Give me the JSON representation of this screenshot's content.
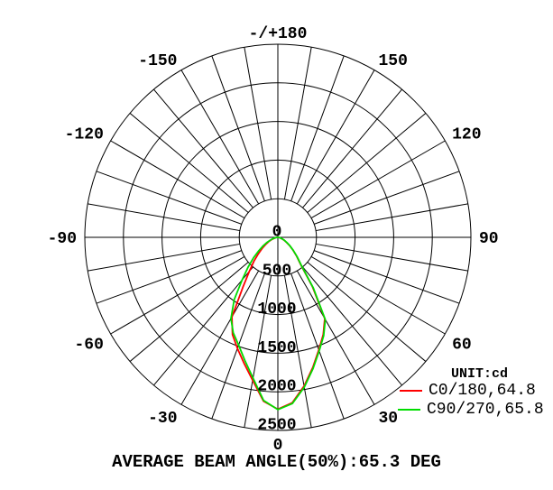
{
  "page": {
    "background": "#ffffff",
    "grid_color": "#000000",
    "text_color": "#000000"
  },
  "legend": {
    "unit_label": "UNIT:cd",
    "entries": [
      {
        "label": "C0/180,64.8",
        "color": "#ff0000"
      },
      {
        "label": "C90/270,65.8",
        "color": "#00dd00"
      }
    ]
  },
  "caption": "AVERAGE BEAM ANGLE(50%):65.3 DEG",
  "chart_data": {
    "type": "line",
    "subtype": "polar-intensity-distribution",
    "unit": "cd",
    "rmax": 2500,
    "radial_ticks": [
      0,
      500,
      1000,
      1500,
      2000,
      2500
    ],
    "grid": {
      "rings": 5,
      "spoke_step_deg": 10,
      "inner_spoke_radius_ticks": 1,
      "color": "#000000"
    },
    "angle_labels": [
      {
        "angle": 0,
        "text": "0"
      },
      {
        "angle": 30,
        "text": "30"
      },
      {
        "angle": -30,
        "text": "-30"
      },
      {
        "angle": 60,
        "text": "60"
      },
      {
        "angle": -60,
        "text": "-60"
      },
      {
        "angle": 90,
        "text": "90"
      },
      {
        "angle": -90,
        "text": "-90"
      },
      {
        "angle": 120,
        "text": "120"
      },
      {
        "angle": -120,
        "text": "-120"
      },
      {
        "angle": 150,
        "text": "150"
      },
      {
        "angle": -150,
        "text": "-150"
      },
      {
        "angle": 180,
        "text": "-/+180"
      }
    ],
    "angles_deg": [
      -90,
      -85,
      -80,
      -75,
      -70,
      -65,
      -60,
      -55,
      -50,
      -45,
      -40,
      -35,
      -30,
      -25,
      -20,
      -15,
      -10,
      -5,
      0,
      5,
      10,
      15,
      20,
      25,
      30,
      35,
      40,
      45,
      50,
      55,
      60,
      65,
      70,
      75,
      80,
      85,
      90
    ],
    "series": [
      {
        "name": "C0/180",
        "beam_angle_50pct_deg": 64.8,
        "color": "#ff0000",
        "values_cd": [
          0,
          12,
          28,
          52,
          88,
          130,
          180,
          245,
          330,
          440,
          575,
          790,
          1190,
          1390,
          1530,
          1690,
          1880,
          2130,
          2225,
          2150,
          1955,
          1745,
          1550,
          1390,
          1215,
          785,
          462,
          344,
          254,
          186,
          130,
          92,
          59,
          36,
          20,
          8,
          0
        ]
      },
      {
        "name": "C90/270",
        "beam_angle_50pct_deg": 65.8,
        "color": "#00dd00",
        "values_cd": [
          0,
          16,
          38,
          65,
          105,
          155,
          220,
          300,
          410,
          545,
          720,
          985,
          1215,
          1365,
          1485,
          1650,
          1850,
          2120,
          2230,
          2160,
          1970,
          1760,
          1565,
          1405,
          1230,
          800,
          470,
          350,
          260,
          190,
          135,
          95,
          62,
          38,
          22,
          9,
          0
        ]
      }
    ],
    "average_beam_angle_50pct_deg": 65.3,
    "legend_position": "right-bottom",
    "zero_angle_direction": "down",
    "positive_angles": "right"
  }
}
